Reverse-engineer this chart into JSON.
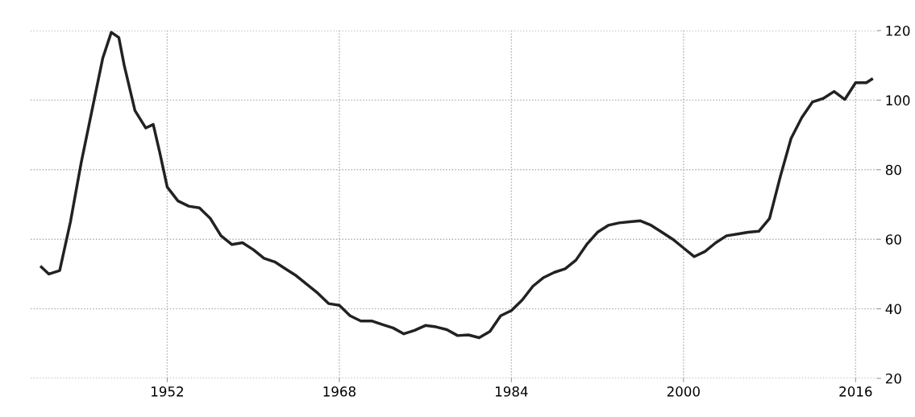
{
  "chart_data": {
    "type": "line",
    "x": [
      1940.3,
      1941,
      1942,
      1943,
      1944,
      1945,
      1946,
      1946.8,
      1947.5,
      1948,
      1949,
      1950,
      1950.7,
      1951.3,
      1952,
      1953,
      1954,
      1955,
      1956,
      1957,
      1958,
      1959,
      1960,
      1961,
      1962,
      1963,
      1964,
      1965,
      1966,
      1967,
      1968,
      1969,
      1970,
      1971,
      1972,
      1973,
      1974,
      1975,
      1976,
      1977,
      1978,
      1979,
      1980,
      1981,
      1982,
      1983,
      1984,
      1985,
      1986,
      1987,
      1988,
      1989,
      1990,
      1991,
      1992,
      1993,
      1994,
      1995,
      1996,
      1997,
      1998,
      1999,
      2000,
      2001,
      2002,
      2003,
      2004,
      2005,
      2006,
      2007,
      2008,
      2009,
      2010,
      2011,
      2012,
      2013,
      2014,
      2015,
      2016,
      2017,
      2017.5
    ],
    "series": [
      {
        "color": "#222222",
        "values": [
          52,
          50,
          51,
          65,
          82,
          97,
          112,
          119.5,
          118,
          110,
          97,
          92,
          93,
          85,
          75,
          71,
          69.5,
          69,
          66,
          61,
          58.5,
          59,
          57,
          54.5,
          53.5,
          51.5,
          49.5,
          47,
          44.5,
          41.5,
          41,
          38,
          36.5,
          36.5,
          35.5,
          34.5,
          32.8,
          33.8,
          35.2,
          34.8,
          34,
          32.3,
          32.5,
          31.7,
          33.5,
          38,
          39.5,
          42.5,
          46.5,
          49,
          50.5,
          51.5,
          54,
          58.5,
          62,
          64,
          64.7,
          65,
          65.3,
          64,
          62,
          60,
          57.5,
          55,
          56.5,
          59,
          61,
          61.5,
          62,
          62.3,
          66,
          78,
          89,
          95,
          99.5,
          100.5,
          102.5,
          100.2,
          105,
          105,
          106
        ]
      }
    ],
    "xlim": [
      1939.3,
      2018
    ],
    "xticks": [
      1952,
      1968,
      1984,
      2000,
      2016
    ],
    "ylim": [
      20,
      120
    ],
    "yticks": [
      20,
      40,
      60,
      80,
      100,
      120
    ],
    "grid": true,
    "line_style": "solid",
    "marker": "none"
  }
}
